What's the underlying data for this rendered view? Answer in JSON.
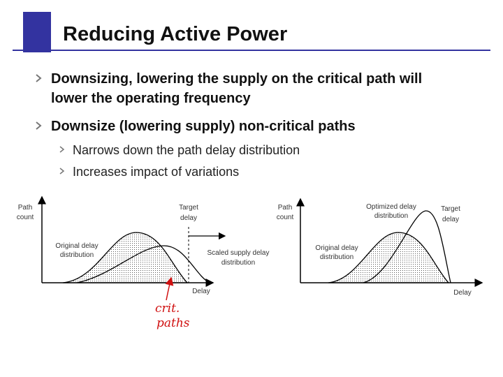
{
  "slide": {
    "title": "Reducing Active Power",
    "bullets": [
      {
        "text": [
          "Downsizing, lowering the supply on the critical path will",
          "lower the operating frequency"
        ]
      },
      {
        "text": [
          "Downsize (lowering supply) non-critical paths"
        ],
        "sub": [
          "Narrows down the path delay distribution",
          "Increases impact of variations"
        ]
      }
    ],
    "left_diagram": {
      "y_axis": [
        "Path",
        "count"
      ],
      "x_axis": "Delay",
      "target": [
        "Target",
        "delay"
      ],
      "original": [
        "Original delay",
        "distribution"
      ],
      "scaled": [
        "Scaled supply delay",
        "distribution"
      ],
      "annotation": [
        "crit.",
        "paths"
      ]
    },
    "right_diagram": {
      "y_axis": [
        "Path",
        "count"
      ],
      "x_axis": "Delay",
      "target": [
        "Target",
        "delay"
      ],
      "optimized": [
        "Optimized delay",
        "distribution"
      ],
      "original": [
        "Original delay",
        "distribution"
      ]
    }
  }
}
